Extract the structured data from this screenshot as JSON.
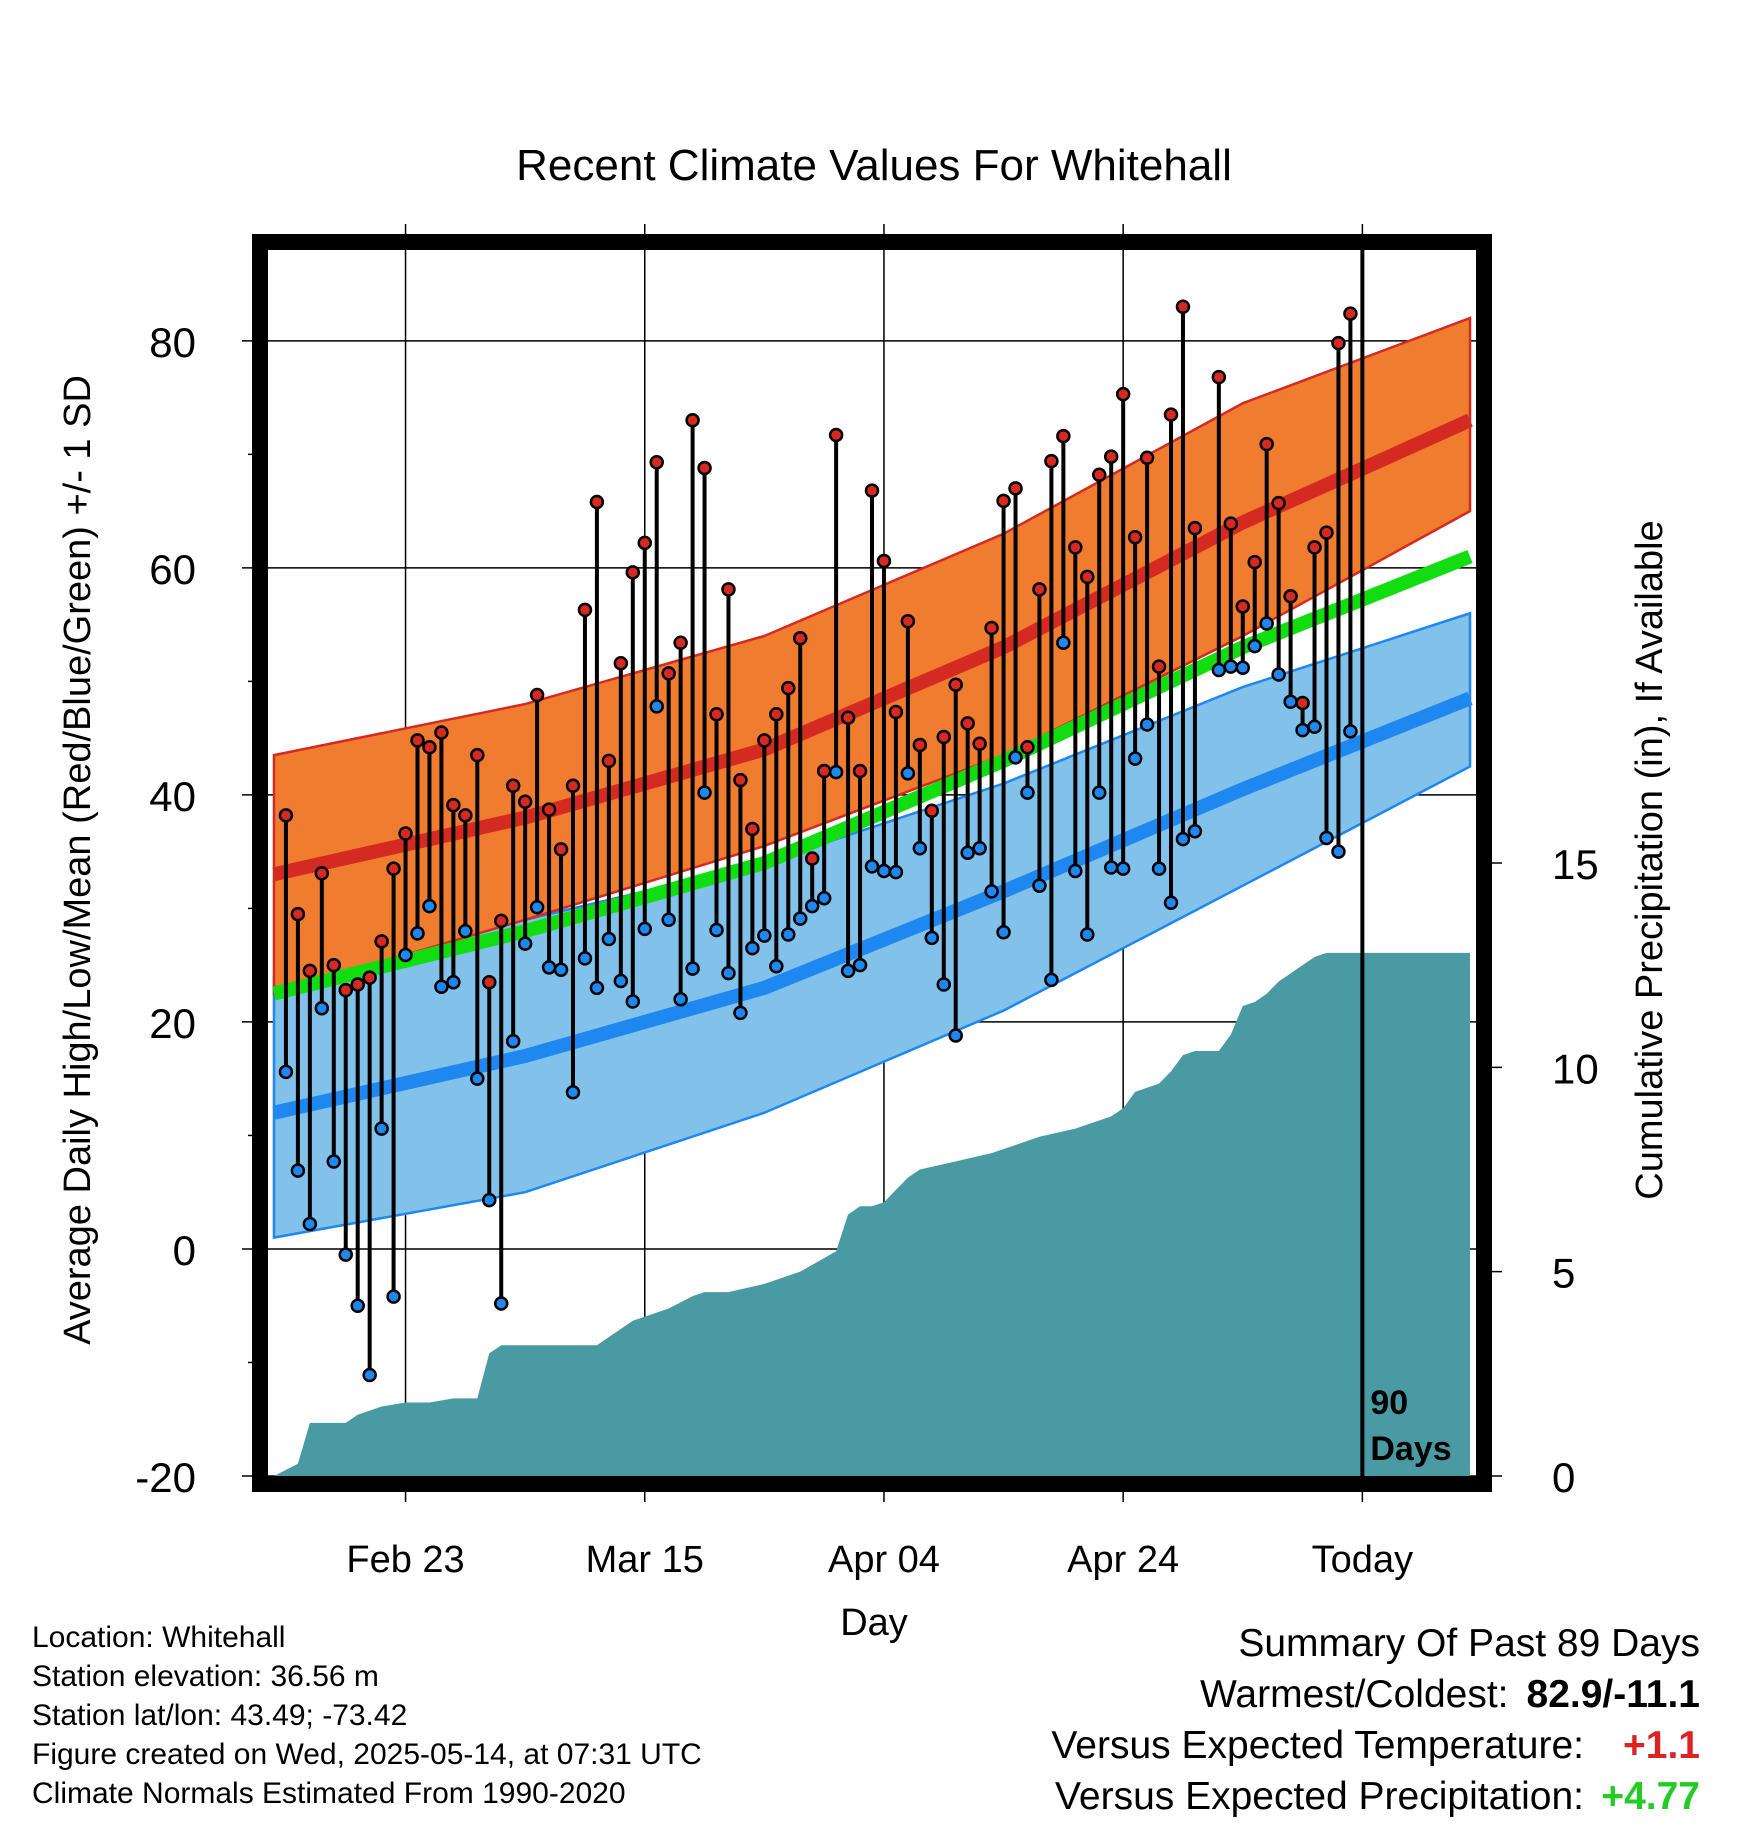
{
  "chart_data": {
    "type": "line",
    "title": "Recent Climate Values For Whitehall",
    "xlabel": "Day",
    "ylabel": "Average Daily High/Low/Mean (Red/Blue/Green) +/- 1 SD",
    "y2label": "Cumulative Precipitation (in), If Available",
    "ylim": [
      -20,
      88
    ],
    "y2lim": [
      0,
      30
    ],
    "yticks": [
      "80",
      "60",
      "40",
      "20",
      "0",
      "-20"
    ],
    "y2ticks": [
      "15",
      "10",
      "5",
      "0"
    ],
    "xtick_labels": [
      "Feb 23",
      "Mar 15",
      "Apr 04",
      "Apr 24",
      "Today"
    ],
    "xtick_days": [
      -80,
      -60,
      -40,
      -20,
      0
    ],
    "xlim": [
      -91.5,
      9.5
    ],
    "today_marker_label": [
      "90",
      "Days"
    ],
    "grid": true,
    "colors": {
      "high_band": "#f07c30",
      "high_mean": "#d42a22",
      "low_band": "#82c2ea",
      "low_mean": "#1e88f0",
      "mean": "#11dd11",
      "precip": "#4a9aa4",
      "high_point": "#d42a22",
      "low_point": "#1e88f0"
    },
    "normals": {
      "days": [
        -91,
        -70,
        -50,
        -30,
        -10,
        9
      ],
      "high_mean": [
        33,
        38,
        44,
        53,
        64,
        73
      ],
      "high_upper": [
        43.5,
        48,
        54,
        63,
        74.5,
        82
      ],
      "high_lower": [
        22.5,
        29,
        35.5,
        43.5,
        54,
        65
      ],
      "mean": [
        22.5,
        28,
        34,
        43,
        53,
        61
      ],
      "low_mean": [
        12,
        17,
        23,
        31.5,
        40.5,
        48.5
      ],
      "low_upper": [
        24,
        29,
        34,
        41,
        49.5,
        56
      ],
      "low_lower": [
        1,
        5,
        12,
        21,
        32,
        42.5
      ]
    },
    "observations": {
      "day_start": -90,
      "day_step": 1,
      "high": [
        38.2,
        29.5,
        24.5,
        33.1,
        25.0,
        22.8,
        23.3,
        23.9,
        27.1,
        33.5,
        36.6,
        44.8,
        44.2,
        45.5,
        39.1,
        38.2,
        43.5,
        23.5,
        28.9,
        40.8,
        39.4,
        48.8,
        38.7,
        35.2,
        40.8,
        56.3,
        65.8,
        43.0,
        51.6,
        59.6,
        62.2,
        69.3,
        50.7,
        53.4,
        73.0,
        68.8,
        47.1,
        58.1,
        41.3,
        37.0,
        44.8,
        47.1,
        49.4,
        53.8,
        34.4,
        42.1,
        71.7,
        46.8,
        42.1,
        66.8,
        60.6,
        47.3,
        55.3,
        44.4,
        38.6,
        45.1,
        49.7,
        46.3,
        44.5,
        54.7,
        65.9,
        67.0,
        44.2,
        58.1,
        69.4,
        71.6,
        61.8,
        59.2,
        68.2,
        69.8,
        75.3,
        62.7,
        69.7,
        51.3,
        73.5,
        83.0,
        63.5,
        null,
        76.8,
        63.9,
        56.6,
        60.5,
        70.9,
        65.7,
        57.5,
        48.1,
        61.8,
        63.1,
        79.8,
        82.4
      ],
      "low": [
        15.6,
        6.9,
        2.2,
        21.2,
        7.7,
        -0.5,
        -5.0,
        -11.1,
        10.6,
        -4.2,
        25.9,
        27.8,
        30.2,
        23.1,
        23.5,
        28.0,
        15.0,
        4.3,
        -4.8,
        18.3,
        26.9,
        30.1,
        24.8,
        24.6,
        13.8,
        25.6,
        23.0,
        27.3,
        23.6,
        21.8,
        28.2,
        47.8,
        29.0,
        22.0,
        24.7,
        40.2,
        28.1,
        24.3,
        20.8,
        26.5,
        27.6,
        24.9,
        27.7,
        29.1,
        30.2,
        30.9,
        42.0,
        24.5,
        25.0,
        33.7,
        33.3,
        33.2,
        41.9,
        35.3,
        27.4,
        23.3,
        18.8,
        34.9,
        35.3,
        31.5,
        27.9,
        43.3,
        40.2,
        32.0,
        23.7,
        53.4,
        33.3,
        27.7,
        40.2,
        33.6,
        33.5,
        43.2,
        46.2,
        33.5,
        30.5,
        36.1,
        36.8,
        null,
        51.0,
        51.3,
        51.2,
        53.1,
        55.1,
        50.6,
        48.2,
        45.7,
        46.0,
        36.2,
        35.0,
        45.6
      ]
    },
    "precip_cumulative": {
      "days": [
        -91,
        -89,
        -88,
        -87,
        -86,
        -85,
        -84,
        -82,
        -80,
        -78,
        -76,
        -74,
        -73,
        -72,
        -71,
        -70,
        -67,
        -64,
        -61,
        -58,
        -56,
        -55,
        -54,
        -53,
        -50,
        -47,
        -44,
        -43,
        -42,
        -41,
        -40,
        -39,
        -38,
        -37,
        -34,
        -31,
        -29,
        -27,
        -24,
        -21,
        -20,
        -19,
        -17,
        -16,
        -15,
        -14,
        -12,
        -11,
        -10,
        -9,
        -8,
        -7,
        -6,
        -5,
        -4,
        -3,
        -2,
        0,
        9
      ],
      "values": [
        0,
        0.3,
        1.3,
        1.3,
        1.3,
        1.3,
        1.5,
        1.7,
        1.8,
        1.8,
        1.9,
        1.9,
        3.0,
        3.2,
        3.2,
        3.2,
        3.2,
        3.2,
        3.8,
        4.1,
        4.4,
        4.5,
        4.5,
        4.5,
        4.7,
        5.0,
        5.5,
        6.4,
        6.6,
        6.6,
        6.7,
        7.0,
        7.3,
        7.5,
        7.7,
        7.9,
        8.1,
        8.3,
        8.5,
        8.8,
        9.0,
        9.4,
        9.6,
        9.9,
        10.3,
        10.4,
        10.4,
        10.8,
        11.5,
        11.6,
        11.8,
        12.1,
        12.3,
        12.5,
        12.7,
        12.8,
        12.8,
        12.8,
        12.8
      ]
    }
  },
  "footer": {
    "location": "Location: Whitehall",
    "elevation": "Station elevation: 36.56 m",
    "latlon": "Station lat/lon: 43.49; -73.42",
    "created": "Figure created on Wed, 2025-05-14, at 07:31 UTC",
    "normals": "Climate Normals Estimated From 1990-2020"
  },
  "summary": {
    "title": "Summary Of Past 89 Days",
    "warmest_coldest_label": "Warmest/Coldest:",
    "warmest_coldest_value": "82.9/-11.1",
    "temp_label": "Versus Expected Temperature:",
    "temp_value": "+1.1",
    "temp_color": "#dd2222",
    "precip_label": "Versus Expected Precipitation:",
    "precip_value": "+4.77",
    "precip_color": "#22cc22"
  }
}
